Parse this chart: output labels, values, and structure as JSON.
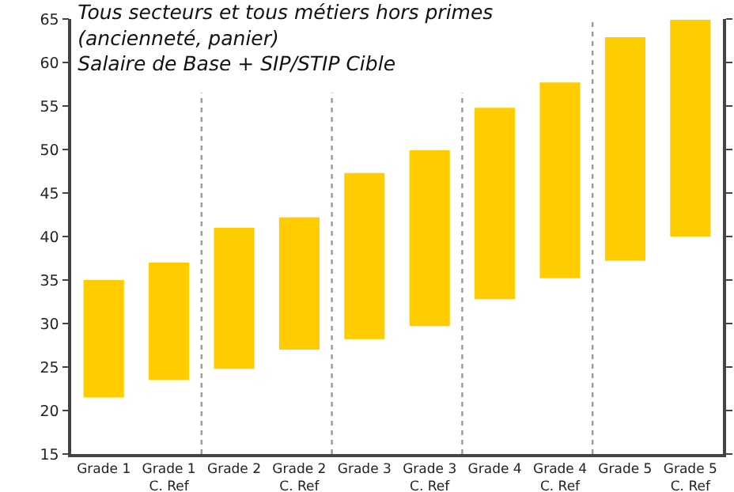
{
  "chart_data": {
    "type": "bar",
    "title": "Tous secteurs et tous métiers hors primes\n(ancienneté, panier)\nSalaire de Base + SIP/STIP Cible",
    "categories": [
      "Grade 1",
      "Grade 1\nC. Ref",
      "Grade 2",
      "Grade 2\nC. Ref",
      "Grade 3",
      "Grade 3\nC. Ref",
      "Grade 4",
      "Grade 4\nC. Ref",
      "Grade 5",
      "Grade 5\nC. Ref"
    ],
    "base": [
      21.5,
      23.5,
      24.8,
      27,
      28.2,
      29.7,
      32.8,
      35.2,
      37.2,
      40
    ],
    "values": [
      13.5,
      13.5,
      16.2,
      15.2,
      19.1,
      20.2,
      22,
      22.5,
      25.7,
      24.9
    ],
    "color": "#ffcc00",
    "ylim": [
      15,
      65
    ],
    "yticks": [
      15,
      20,
      25,
      30,
      35,
      40,
      45,
      50,
      55,
      60,
      65
    ],
    "grid": false
  }
}
